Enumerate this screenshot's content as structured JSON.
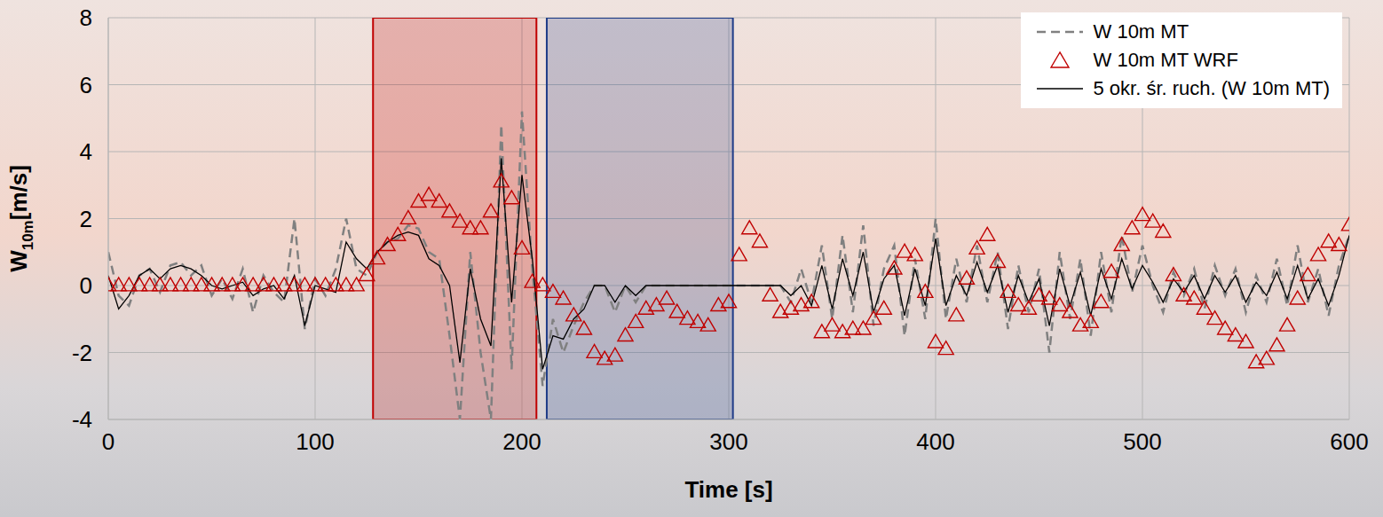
{
  "chart_data": {
    "type": "line",
    "xlabel": "Time [s]",
    "ylabel": "W10m[m/s]",
    "xlim": [
      0,
      600
    ],
    "xticks": [
      0,
      100,
      200,
      300,
      400,
      500,
      600
    ],
    "ylim": [
      -4,
      8
    ],
    "yticks": [
      -4,
      -2,
      0,
      2,
      4,
      6,
      8
    ],
    "grid": true,
    "legend": "top-right",
    "shaded_regions": [
      {
        "x_start": 128,
        "x_end": 207,
        "color": "#c00000"
      },
      {
        "x_start": 212,
        "x_end": 302,
        "color": "#1f3c88"
      }
    ],
    "x": [
      0,
      5,
      10,
      15,
      20,
      25,
      30,
      35,
      40,
      45,
      50,
      55,
      60,
      65,
      70,
      75,
      80,
      85,
      90,
      95,
      100,
      105,
      110,
      115,
      120,
      125,
      130,
      135,
      140,
      145,
      150,
      155,
      160,
      165,
      170,
      175,
      180,
      185,
      190,
      195,
      200,
      205,
      210,
      215,
      220,
      225,
      230,
      235,
      240,
      245,
      250,
      255,
      260,
      265,
      270,
      275,
      280,
      285,
      290,
      295,
      300,
      305,
      310,
      315,
      320,
      325,
      330,
      335,
      340,
      345,
      350,
      355,
      360,
      365,
      370,
      375,
      380,
      385,
      390,
      395,
      400,
      405,
      410,
      415,
      420,
      425,
      430,
      435,
      440,
      445,
      450,
      455,
      460,
      465,
      470,
      475,
      480,
      485,
      490,
      495,
      500,
      505,
      510,
      515,
      520,
      525,
      530,
      535,
      540,
      545,
      550,
      555,
      560,
      565,
      570,
      575,
      580,
      585,
      590,
      595,
      600
    ],
    "series": [
      {
        "name": "W 10m MT",
        "type": "line",
        "color": "#808080",
        "line_style": "dashed",
        "values": [
          1.0,
          -0.3,
          -0.6,
          0.3,
          0.5,
          -0.2,
          0.6,
          0.7,
          0.3,
          0.6,
          -0.3,
          0.2,
          -0.4,
          0.5,
          -0.8,
          0.3,
          -0.2,
          -0.5,
          2.0,
          -1.3,
          0.2,
          -0.3,
          0.5,
          2.0,
          0.5,
          0.3,
          1.0,
          1.3,
          1.4,
          1.8,
          1.7,
          1.0,
          0.8,
          -1.5,
          -4.0,
          1.0,
          -2.0,
          -4.0,
          4.8,
          -2.5,
          5.2,
          0.5,
          -3.0,
          -1.0,
          -2.0,
          -1.2,
          -0.5,
          0,
          0,
          -0.8,
          0,
          -0.5,
          0,
          0,
          0,
          0,
          0,
          0,
          0,
          0,
          0,
          0,
          0,
          0,
          0,
          0,
          -0.5,
          0.5,
          -0.5,
          1.2,
          -1.0,
          1.5,
          -0.8,
          1.8,
          -1.2,
          0.5,
          1.2,
          -1.5,
          0.8,
          -1.0,
          2.0,
          -1.0,
          0.8,
          -0.5,
          1.2,
          -0.5,
          1.0,
          -1.3,
          0.6,
          -0.8,
          0.5,
          -2.0,
          1.0,
          -1.0,
          0.8,
          -1.5,
          1.0,
          -0.8,
          1.5,
          -0.2,
          1.2,
          0.0,
          -0.8,
          0.4,
          -0.3,
          0.5,
          -0.7,
          0.6,
          -0.3,
          0.5,
          -0.8,
          0.3,
          -0.5,
          0.8,
          -0.6,
          1.2,
          -0.5,
          0.5,
          -0.9,
          0.6,
          1.5
        ]
      },
      {
        "name": "W 10m MT WRF",
        "type": "scatter",
        "color": "#c00000",
        "marker": "triangle",
        "line_style": "none",
        "values": [
          0,
          0,
          0,
          0,
          0,
          0,
          0,
          0,
          0,
          0,
          0,
          0,
          0,
          0,
          0,
          0,
          0,
          0,
          0,
          0,
          0,
          0,
          0,
          0,
          0,
          0.3,
          0.8,
          1.2,
          1.5,
          2.0,
          2.5,
          2.7,
          2.5,
          2.2,
          1.9,
          1.7,
          1.7,
          2.2,
          3.1,
          2.6,
          1.1,
          0.1,
          0.0,
          -0.2,
          -0.4,
          -0.9,
          -1.3,
          -2.0,
          -2.2,
          -2.1,
          -1.5,
          -1.1,
          -0.7,
          -0.6,
          -0.4,
          -0.8,
          -1.0,
          -1.1,
          -1.2,
          -0.6,
          -0.5,
          0.9,
          1.7,
          1.3,
          -0.3,
          -0.8,
          -0.7,
          -0.6,
          -0.5,
          -1.4,
          -1.2,
          -1.4,
          -1.3,
          -1.3,
          -1.0,
          -0.7,
          0.5,
          1.0,
          0.9,
          -0.2,
          -1.7,
          -1.9,
          -0.9,
          0.2,
          1.1,
          1.5,
          0.7,
          -0.2,
          -0.6,
          -0.7,
          -0.3,
          -0.4,
          -0.6,
          -0.8,
          -1.2,
          -1.1,
          -0.5,
          0.4,
          1.2,
          1.7,
          2.1,
          1.9,
          1.6,
          0.3,
          -0.3,
          -0.4,
          -0.7,
          -1.0,
          -1.3,
          -1.5,
          -1.7,
          -2.3,
          -2.2,
          -1.8,
          -1.2,
          -0.4,
          0.3,
          0.9,
          1.3,
          1.2,
          1.8
        ]
      },
      {
        "name": "5 okr. śr. ruch. (W 10m MT)",
        "type": "line",
        "color": "#000000",
        "line_style": "solid",
        "values": [
          0.3,
          -0.7,
          -0.3,
          0.3,
          0.5,
          0.2,
          0.5,
          0.6,
          0.5,
          0.3,
          0.0,
          -0.1,
          0.0,
          0.1,
          -0.3,
          -0.1,
          0.0,
          -0.4,
          0.3,
          -1.2,
          0.0,
          -0.1,
          -0.2,
          1.3,
          0.8,
          0.5,
          1.0,
          1.3,
          1.5,
          1.6,
          1.5,
          0.8,
          0.6,
          0.0,
          -2.3,
          0.5,
          -1.0,
          -1.8,
          3.8,
          -0.5,
          3.3,
          0.8,
          -2.5,
          -1.5,
          -1.6,
          -1.0,
          -0.7,
          0.0,
          0.0,
          -0.5,
          0.0,
          -0.3,
          0.0,
          0,
          0,
          0,
          0,
          0,
          0,
          0,
          0,
          0,
          0,
          0,
          0,
          0,
          -0.3,
          0.0,
          -0.6,
          0.6,
          -0.7,
          0.8,
          -0.3,
          1.0,
          -0.8,
          0.2,
          0.6,
          -0.9,
          0.5,
          -0.6,
          1.4,
          -0.6,
          0.3,
          -0.3,
          0.7,
          -0.2,
          0.6,
          -0.8,
          0.3,
          -0.5,
          0.2,
          -1.2,
          0.5,
          -0.6,
          0.4,
          -0.9,
          0.5,
          -0.4,
          0.8,
          -0.1,
          0.6,
          0.1,
          -0.5,
          0.2,
          -0.2,
          0.3,
          -0.4,
          0.3,
          -0.2,
          0.3,
          -0.5,
          0.1,
          -0.3,
          0.4,
          -0.4,
          0.6,
          -0.4,
          0.2,
          -0.6,
          0.3,
          1.5
        ]
      }
    ]
  }
}
